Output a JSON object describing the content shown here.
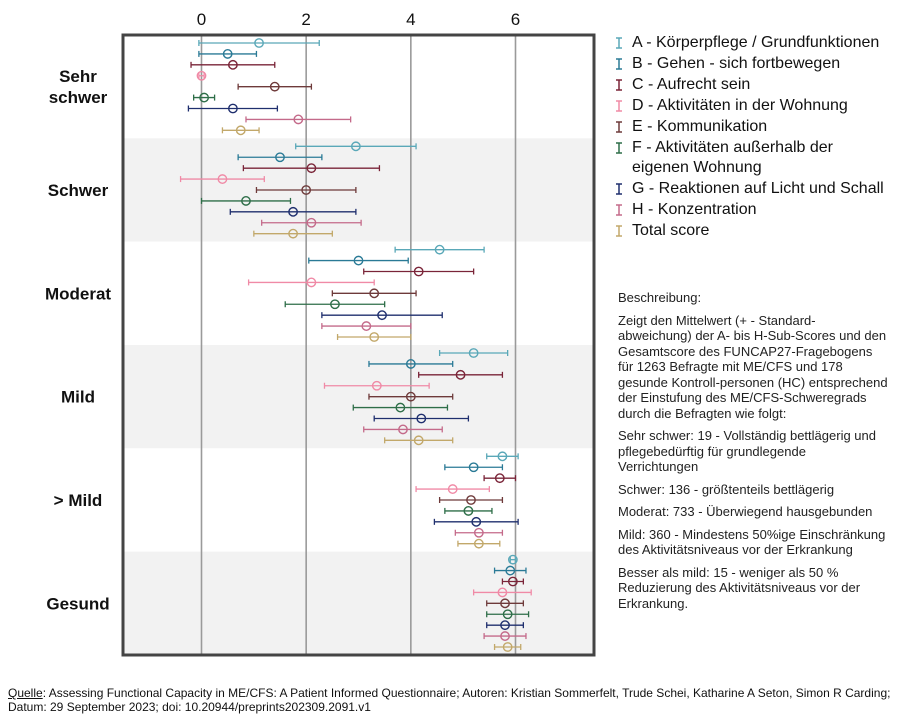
{
  "chart_data": {
    "type": "errorbar",
    "x_ticks": [
      "0",
      "2",
      "4",
      "6"
    ],
    "xlim": [
      -1.5,
      7.5
    ],
    "categories": [
      "Sehr schwer",
      "Schwer",
      "Moderat",
      "Mild",
      "> Mild",
      "Gesund"
    ],
    "series": [
      {
        "name": "A - Körperpflege / Grundfunktionen",
        "color": "#5aa8b8",
        "mean": [
          1.1,
          2.95,
          4.55,
          5.2,
          5.75,
          5.95
        ],
        "sd": [
          1.15,
          1.15,
          0.85,
          0.65,
          0.3,
          0.05
        ]
      },
      {
        "name": "B - Gehen - sich fortbewegen",
        "color": "#2a7a96",
        "mean": [
          0.5,
          1.5,
          3.0,
          4.0,
          5.2,
          5.9
        ],
        "sd": [
          0.55,
          0.8,
          0.95,
          0.8,
          0.55,
          0.3
        ]
      },
      {
        "name": "C - Aufrecht sein",
        "color": "#7a2438",
        "mean": [
          0.6,
          2.1,
          4.15,
          4.95,
          5.7,
          5.95
        ],
        "sd": [
          0.8,
          1.3,
          1.05,
          0.8,
          0.3,
          0.2
        ]
      },
      {
        "name": "D - Aktivitäten in der Wohnung",
        "color": "#f08aa6",
        "mean": [
          0.0,
          0.4,
          2.1,
          3.35,
          4.8,
          5.75
        ],
        "sd": [
          0.05,
          0.8,
          1.2,
          1.0,
          0.7,
          0.55
        ]
      },
      {
        "name": "E - Kommunikation",
        "color": "#6e3a3a",
        "mean": [
          1.4,
          2.0,
          3.3,
          4.0,
          5.15,
          5.8
        ],
        "sd": [
          0.7,
          0.95,
          0.8,
          0.8,
          0.6,
          0.35
        ]
      },
      {
        "name": "F - Aktivitäten außerhalb der eigenen Wohnung",
        "color": "#2e6e48",
        "mean": [
          0.05,
          0.85,
          2.55,
          3.8,
          5.1,
          5.85
        ],
        "sd": [
          0.2,
          0.85,
          0.95,
          0.9,
          0.45,
          0.4
        ]
      },
      {
        "name": "G - Reaktionen auf Licht und Schall",
        "color": "#1f2f6e",
        "mean": [
          0.6,
          1.75,
          3.45,
          4.2,
          5.25,
          5.8
        ],
        "sd": [
          0.85,
          1.2,
          1.15,
          0.9,
          0.8,
          0.35
        ]
      },
      {
        "name": "H - Konzentration",
        "color": "#c46a8a",
        "mean": [
          1.85,
          2.1,
          3.15,
          3.85,
          5.3,
          5.8
        ],
        "sd": [
          1.0,
          0.95,
          0.85,
          0.75,
          0.45,
          0.4
        ]
      },
      {
        "name": "Total score",
        "color": "#c2a86a",
        "mean": [
          0.75,
          1.75,
          3.3,
          4.15,
          5.3,
          5.85
        ],
        "sd": [
          0.35,
          0.75,
          0.7,
          0.65,
          0.4,
          0.25
        ]
      }
    ]
  },
  "legend": {
    "marker_glyph": "I"
  },
  "description": {
    "heading": "Beschreibung:",
    "intro": "Zeigt den Mittelwert (+ - Standard-abweichung) der A- bis H-Sub-Scores und den Gesamtscore des FUNCAP27-Fragebogens für 1263 Befragte mit ME/CFS und 178 gesunde Kontroll-personen (HC) entsprechend der Einstufung des ME/CFS-Schweregrads durch die Befragten wie folgt:",
    "items": [
      "Sehr schwer: 19 - Vollständig bettlägerig und pflegebedürftig für grundlegende Verrichtungen",
      "Schwer: 136 - größtenteils bettlägerig",
      "Moderat: 733 - Überwiegend hausgebunden",
      "Mild: 360 - Mindestens 50%ige Einschränkung des Aktivitätsniveaus vor der Erkrankung",
      "Besser als mild: 15 - weniger als 50 % Reduzierung des Aktivitätsniveaus vor der Erkrankung."
    ]
  },
  "source": {
    "label": "Quelle",
    "text": ": Assessing Functional Capacity in ME/CFS: A Patient Informed Questionnaire; Autoren: Kristian Sommerfelt, Trude Schei, Katharine A Seton, Simon R Carding; Datum: 29 September 2023; doi: 10.20944/preprints202309.2091.v1"
  }
}
